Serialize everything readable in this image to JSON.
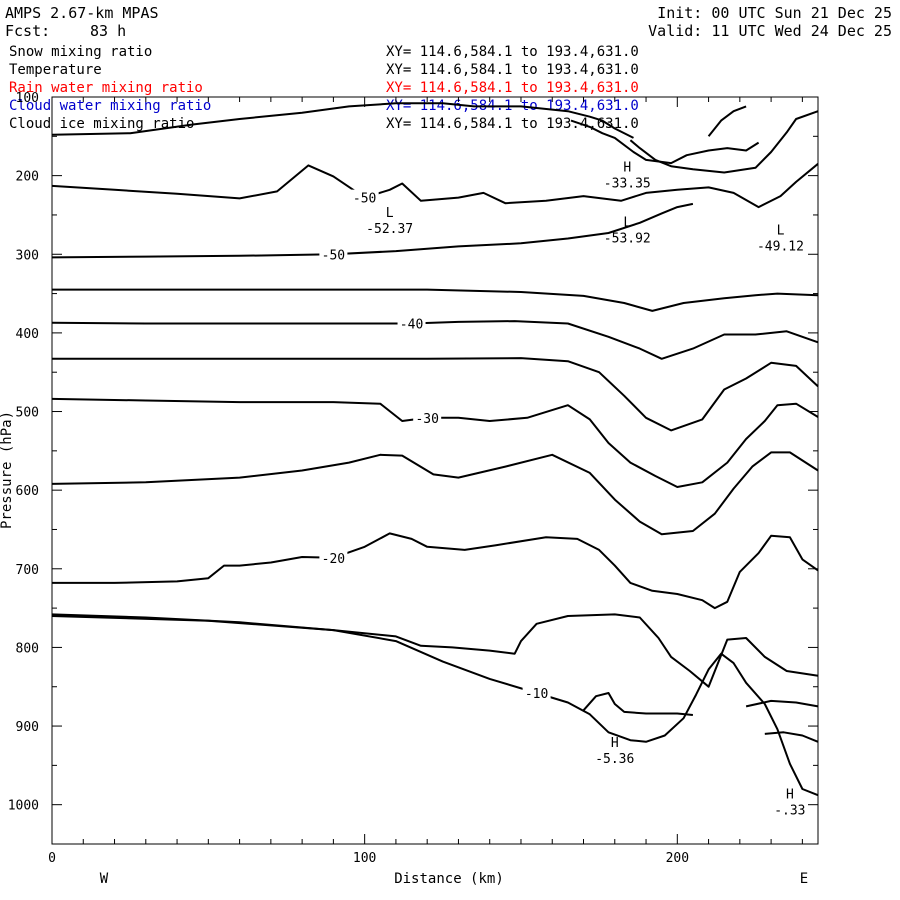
{
  "header": {
    "model": "AMPS 2.67-km MPAS",
    "init": "Init: 00 UTC Sun 21 Dec 25",
    "fcst_label": "Fcst:",
    "fcst_value": "83 h",
    "valid": "Valid: 11 UTC Wed 24 Dec 25"
  },
  "fields": [
    {
      "name": "Snow mixing ratio",
      "xy": "XY= 114.6,584.1 to 193.4,631.0",
      "color": "#000000"
    },
    {
      "name": "Temperature",
      "xy": "XY= 114.6,584.1 to 193.4,631.0",
      "color": "#000000"
    },
    {
      "name": "Rain water mixing ratio",
      "xy": "XY= 114.6,584.1 to 193.4,631.0",
      "color": "#ff0000"
    },
    {
      "name": "Cloud water mixing ratio",
      "xy": "XY= 114.6,584.1 to 193.4,631.0",
      "color": "#0000cc"
    },
    {
      "name": "Cloud ice mixing ratio",
      "xy": "XY= 114.6,584.1 to 193.4,631.0",
      "color": "#000000"
    }
  ],
  "chart_data": {
    "type": "contour",
    "xlabel": "Distance (km)",
    "ylabel": "Pressure (hPa)",
    "xlim": [
      0,
      245
    ],
    "ylim": [
      1050,
      100
    ],
    "x_ticks": [
      0,
      100,
      200
    ],
    "y_ticks": [
      100,
      200,
      300,
      400,
      500,
      600,
      700,
      800,
      900,
      1000
    ],
    "west_label": "W",
    "east_label": "E",
    "contours": [
      {
        "label": "",
        "points": [
          [
            0,
            148
          ],
          [
            25,
            146
          ],
          [
            45,
            135
          ],
          [
            60,
            128
          ],
          [
            80,
            120
          ],
          [
            95,
            112
          ],
          [
            110,
            108
          ],
          [
            125,
            108
          ],
          [
            135,
            112
          ],
          [
            150,
            112
          ],
          [
            165,
            118
          ],
          [
            172,
            125
          ],
          [
            176,
            130
          ],
          [
            180,
            140
          ],
          [
            186,
            152
          ]
        ]
      },
      {
        "label": "",
        "points": [
          [
            166,
            130
          ],
          [
            172,
            138
          ],
          [
            176,
            146
          ],
          [
            180,
            152
          ],
          [
            186,
            170
          ],
          [
            190,
            180
          ],
          [
            198,
            184
          ],
          [
            203,
            174
          ],
          [
            210,
            168
          ],
          [
            216,
            165
          ],
          [
            222,
            168
          ],
          [
            226,
            158
          ]
        ]
      },
      {
        "label": "",
        "points": [
          [
            185,
            155
          ],
          [
            188,
            165
          ],
          [
            193,
            180
          ],
          [
            198,
            188
          ],
          [
            205,
            192
          ],
          [
            215,
            196
          ],
          [
            225,
            190
          ],
          [
            230,
            170
          ],
          [
            235,
            145
          ],
          [
            238,
            128
          ],
          [
            245,
            118
          ]
        ]
      },
      {
        "label": "",
        "points": [
          [
            210,
            150
          ],
          [
            214,
            130
          ],
          [
            218,
            118
          ],
          [
            222,
            112
          ]
        ]
      },
      {
        "label": "-50",
        "points": [
          [
            0,
            213
          ],
          [
            20,
            218
          ],
          [
            40,
            223
          ],
          [
            60,
            229
          ],
          [
            72,
            220
          ],
          [
            82,
            187
          ],
          [
            90,
            201
          ],
          [
            100,
            228
          ],
          [
            108,
            218
          ],
          [
            112,
            210
          ],
          [
            118,
            232
          ],
          [
            130,
            228
          ],
          [
            138,
            222
          ],
          [
            145,
            235
          ],
          [
            158,
            232
          ],
          [
            170,
            226
          ],
          [
            182,
            232
          ],
          [
            190,
            222
          ],
          [
            200,
            218
          ],
          [
            210,
            215
          ],
          [
            218,
            222
          ],
          [
            226,
            240
          ],
          [
            233,
            226
          ],
          [
            238,
            208
          ],
          [
            245,
            185
          ]
        ]
      },
      {
        "label": "-50",
        "points": [
          [
            0,
            304
          ],
          [
            30,
            303
          ],
          [
            60,
            302
          ],
          [
            90,
            300
          ],
          [
            110,
            296
          ],
          [
            130,
            290
          ],
          [
            150,
            286
          ],
          [
            165,
            280
          ],
          [
            178,
            273
          ],
          [
            188,
            260
          ],
          [
            195,
            248
          ],
          [
            200,
            240
          ],
          [
            205,
            236
          ]
        ]
      },
      {
        "label": "",
        "points": [
          [
            0,
            345
          ],
          [
            40,
            345
          ],
          [
            80,
            345
          ],
          [
            120,
            345
          ],
          [
            150,
            348
          ],
          [
            170,
            353
          ],
          [
            183,
            362
          ],
          [
            192,
            372
          ],
          [
            202,
            362
          ],
          [
            215,
            356
          ],
          [
            225,
            352
          ],
          [
            232,
            350
          ],
          [
            245,
            352
          ]
        ]
      },
      {
        "label": "-40",
        "points": [
          [
            0,
            387
          ],
          [
            30,
            388
          ],
          [
            60,
            388
          ],
          [
            90,
            388
          ],
          [
            115,
            388
          ],
          [
            130,
            386
          ],
          [
            148,
            385
          ],
          [
            165,
            388
          ],
          [
            178,
            405
          ],
          [
            188,
            420
          ],
          [
            195,
            433
          ],
          [
            205,
            420
          ],
          [
            215,
            402
          ],
          [
            225,
            402
          ],
          [
            235,
            398
          ],
          [
            245,
            412
          ]
        ]
      },
      {
        "label": "",
        "points": [
          [
            0,
            433
          ],
          [
            40,
            433
          ],
          [
            80,
            433
          ],
          [
            120,
            433
          ],
          [
            150,
            432
          ],
          [
            165,
            436
          ],
          [
            175,
            450
          ],
          [
            183,
            480
          ],
          [
            190,
            508
          ],
          [
            198,
            524
          ],
          [
            208,
            510
          ],
          [
            215,
            472
          ],
          [
            222,
            458
          ],
          [
            230,
            438
          ],
          [
            238,
            442
          ],
          [
            245,
            468
          ]
        ]
      },
      {
        "label": "-30",
        "points": [
          [
            0,
            484
          ],
          [
            30,
            486
          ],
          [
            60,
            488
          ],
          [
            90,
            488
          ],
          [
            105,
            490
          ],
          [
            112,
            512
          ],
          [
            120,
            508
          ],
          [
            130,
            508
          ],
          [
            140,
            512
          ],
          [
            152,
            508
          ],
          [
            165,
            492
          ],
          [
            172,
            510
          ],
          [
            178,
            540
          ],
          [
            185,
            565
          ],
          [
            193,
            582
          ],
          [
            200,
            596
          ],
          [
            208,
            590
          ],
          [
            216,
            565
          ],
          [
            222,
            535
          ],
          [
            228,
            512
          ],
          [
            232,
            492
          ],
          [
            238,
            490
          ],
          [
            245,
            507
          ]
        ]
      },
      {
        "label": "",
        "points": [
          [
            0,
            592
          ],
          [
            30,
            590
          ],
          [
            60,
            584
          ],
          [
            80,
            575
          ],
          [
            95,
            565
          ],
          [
            105,
            555
          ],
          [
            112,
            556
          ],
          [
            122,
            580
          ],
          [
            130,
            584
          ],
          [
            145,
            570
          ],
          [
            160,
            555
          ],
          [
            172,
            578
          ],
          [
            180,
            612
          ],
          [
            188,
            640
          ],
          [
            195,
            656
          ],
          [
            205,
            652
          ],
          [
            212,
            630
          ],
          [
            218,
            598
          ],
          [
            224,
            570
          ],
          [
            230,
            552
          ],
          [
            236,
            552
          ],
          [
            245,
            575
          ]
        ]
      },
      {
        "label": "-20",
        "points": [
          [
            0,
            718
          ],
          [
            20,
            718
          ],
          [
            40,
            716
          ],
          [
            50,
            712
          ],
          [
            55,
            696
          ],
          [
            60,
            696
          ],
          [
            70,
            692
          ],
          [
            80,
            685
          ],
          [
            90,
            686
          ],
          [
            100,
            672
          ],
          [
            108,
            655
          ],
          [
            115,
            662
          ],
          [
            120,
            672
          ],
          [
            132,
            676
          ],
          [
            142,
            670
          ],
          [
            158,
            660
          ],
          [
            168,
            662
          ],
          [
            175,
            676
          ],
          [
            180,
            696
          ],
          [
            185,
            718
          ],
          [
            192,
            728
          ],
          [
            200,
            732
          ],
          [
            208,
            740
          ],
          [
            212,
            750
          ],
          [
            216,
            742
          ],
          [
            220,
            704
          ],
          [
            226,
            680
          ],
          [
            230,
            658
          ],
          [
            236,
            660
          ],
          [
            240,
            688
          ],
          [
            245,
            702
          ]
        ]
      },
      {
        "label": "",
        "points": [
          [
            0,
            758
          ],
          [
            30,
            762
          ],
          [
            60,
            768
          ],
          [
            90,
            778
          ],
          [
            110,
            786
          ],
          [
            118,
            798
          ],
          [
            128,
            800
          ],
          [
            140,
            804
          ],
          [
            148,
            808
          ],
          [
            150,
            792
          ],
          [
            155,
            770
          ],
          [
            165,
            760
          ],
          [
            180,
            758
          ],
          [
            188,
            762
          ],
          [
            194,
            788
          ],
          [
            198,
            812
          ],
          [
            204,
            830
          ],
          [
            210,
            850
          ],
          [
            216,
            790
          ],
          [
            222,
            788
          ],
          [
            228,
            812
          ],
          [
            235,
            830
          ],
          [
            245,
            836
          ]
        ]
      },
      {
        "label": "-10",
        "points": [
          [
            0,
            760
          ],
          [
            50,
            766
          ],
          [
            90,
            778
          ],
          [
            110,
            792
          ],
          [
            125,
            818
          ],
          [
            140,
            840
          ],
          [
            155,
            858
          ],
          [
            165,
            870
          ],
          [
            172,
            885
          ],
          [
            178,
            908
          ],
          [
            185,
            918
          ],
          [
            190,
            920
          ],
          [
            196,
            912
          ],
          [
            202,
            890
          ],
          [
            206,
            860
          ],
          [
            210,
            828
          ],
          [
            214,
            808
          ],
          [
            218,
            820
          ],
          [
            222,
            845
          ],
          [
            228,
            872
          ],
          [
            232,
            904
          ],
          [
            236,
            948
          ],
          [
            240,
            980
          ],
          [
            245,
            988
          ]
        ]
      },
      {
        "label": "",
        "points": [
          [
            170,
            880
          ],
          [
            174,
            862
          ],
          [
            178,
            858
          ],
          [
            180,
            872
          ],
          [
            183,
            882
          ],
          [
            190,
            884
          ],
          [
            200,
            884
          ],
          [
            205,
            886
          ]
        ]
      },
      {
        "label": "",
        "points": [
          [
            222,
            875
          ],
          [
            230,
            868
          ],
          [
            238,
            870
          ],
          [
            245,
            875
          ]
        ]
      },
      {
        "label": "",
        "points": [
          [
            228,
            910
          ],
          [
            234,
            908
          ],
          [
            240,
            912
          ],
          [
            245,
            920
          ]
        ]
      }
    ],
    "extrema": [
      {
        "type": "H",
        "value": "-33.35",
        "x": 184,
        "p": 200
      },
      {
        "type": "L",
        "value": "-52.37",
        "x": 108,
        "p": 258
      },
      {
        "type": "L",
        "value": "-53.92",
        "x": 184,
        "p": 270
      },
      {
        "type": "L",
        "value": "-49.12",
        "x": 233,
        "p": 280
      },
      {
        "type": "H",
        "value": "-5.36",
        "x": 180,
        "p": 932
      },
      {
        "type": "H",
        "value": "-.33",
        "x": 236,
        "p": 997
      }
    ]
  }
}
